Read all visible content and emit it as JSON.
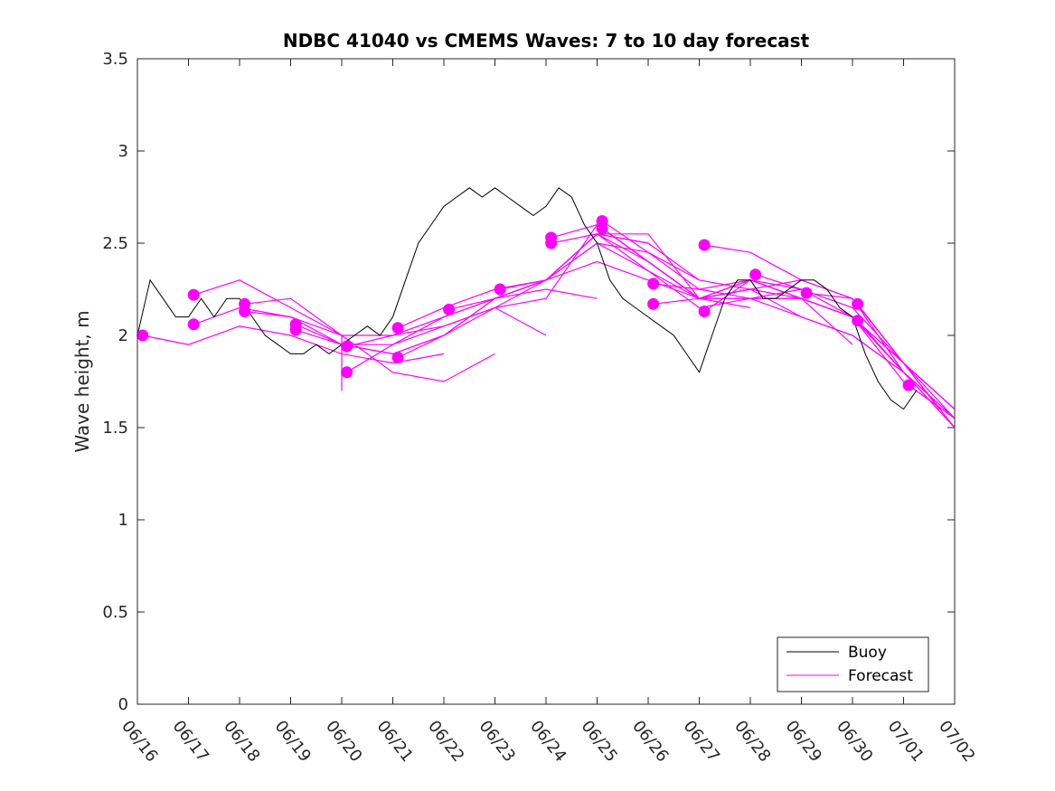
{
  "chart_data": {
    "type": "line",
    "title": "NDBC 41040 vs CMEMS Waves: 7 to 10 day forecast",
    "xlabel": "",
    "ylabel": "Wave height, m",
    "x_tick_labels": [
      "06/16",
      "06/17",
      "06/18",
      "06/19",
      "06/20",
      "06/21",
      "06/22",
      "06/23",
      "06/24",
      "06/25",
      "06/26",
      "06/27",
      "06/28",
      "06/29",
      "06/30",
      "07/01",
      "07/02"
    ],
    "xlim_days": [
      0,
      16
    ],
    "ylim": [
      0,
      3.5
    ],
    "y_ticks": [
      "0",
      "0.5",
      "1",
      "1.5",
      "2",
      "2.5",
      "3",
      "3.5"
    ],
    "grid": false,
    "legend_position": "bottom-right",
    "colors": {
      "buoy": "#000000",
      "forecast": "#ff00ff"
    },
    "buoy": {
      "name": "Buoy",
      "x_days": [
        0,
        0.25,
        0.5,
        0.75,
        1,
        1.25,
        1.5,
        1.75,
        2,
        2.25,
        2.5,
        2.75,
        3,
        3.25,
        3.5,
        3.75,
        4,
        4.25,
        4.5,
        4.75,
        5,
        5.25,
        5.5,
        5.75,
        6,
        6.25,
        6.5,
        6.75,
        7,
        7.25,
        7.5,
        7.75,
        8,
        8.25,
        8.5,
        8.75,
        9,
        9.25,
        9.5,
        9.75,
        10,
        10.25,
        10.5,
        10.75,
        11,
        11.25,
        11.5,
        11.75,
        12,
        12.25,
        12.5,
        12.75,
        13,
        13.25,
        13.5,
        13.75,
        14,
        14.25,
        14.5,
        14.75,
        15,
        15.25
      ],
      "values": [
        2.0,
        2.3,
        2.2,
        2.1,
        2.1,
        2.2,
        2.1,
        2.2,
        2.2,
        2.1,
        2.0,
        1.95,
        1.9,
        1.9,
        1.95,
        1.9,
        1.95,
        2.0,
        2.05,
        2.0,
        2.1,
        2.3,
        2.5,
        2.6,
        2.7,
        2.75,
        2.8,
        2.75,
        2.8,
        2.75,
        2.7,
        2.65,
        2.7,
        2.8,
        2.75,
        2.6,
        2.5,
        2.3,
        2.2,
        2.15,
        2.1,
        2.05,
        2.0,
        1.9,
        1.8,
        2.0,
        2.2,
        2.3,
        2.3,
        2.2,
        2.2,
        2.25,
        2.3,
        2.3,
        2.25,
        2.15,
        2.1,
        1.9,
        1.75,
        1.65,
        1.6,
        1.7
      ]
    },
    "forecast": {
      "name": "Forecast",
      "series": [
        {
          "x_days": [
            0.1,
            1,
            2,
            3,
            4,
            5,
            6
          ],
          "values": [
            2.0,
            1.95,
            2.05,
            2.0,
            1.9,
            1.85,
            1.9
          ]
        },
        {
          "x_days": [
            1.1,
            2,
            3,
            4,
            4.0
          ],
          "values": [
            2.22,
            2.3,
            2.15,
            2.0,
            1.7
          ]
        },
        {
          "x_days": [
            1.1,
            2,
            3,
            4,
            5,
            6,
            7
          ],
          "values": [
            2.06,
            2.15,
            2.1,
            2.0,
            1.8,
            1.75,
            1.9
          ]
        },
        {
          "x_days": [
            2.1,
            3,
            4,
            5,
            6,
            7,
            8
          ],
          "values": [
            2.17,
            2.2,
            2.0,
            2.0,
            2.05,
            2.15,
            2.0
          ]
        },
        {
          "x_days": [
            2.1,
            3,
            4,
            5,
            6,
            7,
            8,
            9
          ],
          "values": [
            2.13,
            2.1,
            1.95,
            1.9,
            2.0,
            2.2,
            2.25,
            2.2
          ]
        },
        {
          "x_days": [
            3.1,
            4,
            5,
            6,
            7,
            8,
            9,
            10
          ],
          "values": [
            2.06,
            1.95,
            1.95,
            2.1,
            2.2,
            2.3,
            2.55,
            2.5
          ]
        },
        {
          "x_days": [
            3.1,
            4,
            5,
            6,
            7,
            8,
            9,
            10,
            11
          ],
          "values": [
            2.03,
            1.95,
            1.9,
            2.0,
            2.15,
            2.3,
            2.55,
            2.5,
            2.3
          ]
        },
        {
          "x_days": [
            4.1,
            5,
            6,
            7,
            8,
            9,
            10,
            11,
            12
          ],
          "values": [
            1.94,
            2.0,
            2.1,
            2.2,
            2.3,
            2.55,
            2.55,
            2.2,
            2.15
          ]
        },
        {
          "x_days": [
            4.1,
            5,
            6,
            7,
            8,
            9,
            10,
            11,
            12
          ],
          "values": [
            1.8,
            1.95,
            2.05,
            2.15,
            2.2,
            2.6,
            2.4,
            2.2,
            2.25
          ]
        },
        {
          "x_days": [
            5.1,
            6,
            7,
            8,
            9,
            10,
            11,
            12,
            13
          ],
          "values": [
            2.04,
            2.15,
            2.25,
            2.3,
            2.5,
            2.45,
            2.25,
            2.2,
            2.25
          ]
        },
        {
          "x_days": [
            5.1,
            6,
            7,
            8,
            9,
            10,
            11,
            12,
            13,
            14
          ],
          "values": [
            1.88,
            2.0,
            2.2,
            2.3,
            2.4,
            2.3,
            2.2,
            2.2,
            2.2,
            1.95
          ]
        },
        {
          "x_days": [
            6.1,
            7,
            8,
            9,
            10,
            11,
            12,
            13,
            14,
            15
          ],
          "values": [
            2.14,
            2.2,
            2.3,
            2.5,
            2.35,
            2.2,
            2.25,
            2.1,
            2.0,
            1.8
          ]
        },
        {
          "x_days": [
            7.1,
            8,
            9,
            10,
            11,
            12,
            13,
            14,
            15,
            15.7
          ],
          "values": [
            2.25,
            2.3,
            2.55,
            2.4,
            2.2,
            2.3,
            2.2,
            2.1,
            1.85,
            1.6
          ]
        },
        {
          "x_days": [
            8.1,
            9,
            10,
            11,
            12,
            13,
            14,
            15,
            16
          ],
          "values": [
            2.53,
            2.6,
            2.4,
            2.2,
            2.3,
            2.2,
            2.1,
            1.85,
            1.55
          ]
        },
        {
          "x_days": [
            8.1,
            9,
            10,
            11,
            12,
            13,
            14,
            15,
            16
          ],
          "values": [
            2.5,
            2.55,
            2.35,
            2.15,
            2.2,
            2.1,
            2.0,
            1.8,
            1.5
          ]
        },
        {
          "x_days": [
            9.1,
            10,
            11,
            12,
            13,
            14,
            15,
            16
          ],
          "values": [
            2.62,
            2.45,
            2.3,
            2.25,
            2.3,
            2.2,
            1.85,
            1.6
          ]
        },
        {
          "x_days": [
            9.1,
            10,
            11,
            12,
            13,
            14,
            15,
            16
          ],
          "values": [
            2.58,
            2.4,
            2.2,
            2.2,
            2.2,
            2.1,
            1.8,
            1.55
          ]
        },
        {
          "x_days": [
            10.1,
            11,
            12,
            13,
            14,
            15,
            16
          ],
          "values": [
            2.28,
            2.25,
            2.3,
            2.2,
            2.1,
            1.85,
            1.5
          ]
        },
        {
          "x_days": [
            10.1,
            11,
            12,
            13,
            14,
            15,
            16
          ],
          "values": [
            2.17,
            2.2,
            2.25,
            2.2,
            2.1,
            1.8,
            1.55
          ]
        },
        {
          "x_days": [
            11.1,
            12,
            13,
            14,
            15,
            16
          ],
          "values": [
            2.49,
            2.45,
            2.3,
            2.2,
            1.8,
            1.5
          ]
        },
        {
          "x_days": [
            11.1,
            12,
            13,
            14,
            15,
            16
          ],
          "values": [
            2.13,
            2.3,
            2.25,
            2.1,
            1.75,
            1.55
          ]
        },
        {
          "x_days": [
            12.1,
            13,
            14,
            15,
            16
          ],
          "values": [
            2.33,
            2.25,
            2.15,
            1.85,
            1.6
          ]
        },
        {
          "x_days": [
            13.1,
            14,
            15,
            16
          ],
          "values": [
            2.23,
            2.2,
            1.8,
            1.55
          ]
        },
        {
          "x_days": [
            14.1,
            15,
            16
          ],
          "values": [
            2.17,
            1.85,
            1.6
          ]
        },
        {
          "x_days": [
            14.1,
            15,
            16
          ],
          "values": [
            2.08,
            1.8,
            1.5
          ]
        },
        {
          "x_days": [
            15.1,
            16
          ],
          "values": [
            1.73,
            1.55
          ]
        }
      ],
      "markers": [
        [
          0.1,
          2.0
        ],
        [
          1.1,
          2.22
        ],
        [
          1.1,
          2.06
        ],
        [
          2.1,
          2.17
        ],
        [
          2.1,
          2.13
        ],
        [
          3.1,
          2.06
        ],
        [
          3.1,
          2.03
        ],
        [
          4.1,
          1.94
        ],
        [
          4.1,
          1.8
        ],
        [
          5.1,
          2.04
        ],
        [
          5.1,
          1.88
        ],
        [
          6.1,
          2.14
        ],
        [
          7.1,
          2.25
        ],
        [
          8.1,
          2.53
        ],
        [
          8.1,
          2.5
        ],
        [
          9.1,
          2.62
        ],
        [
          9.1,
          2.58
        ],
        [
          10.1,
          2.28
        ],
        [
          10.1,
          2.17
        ],
        [
          11.1,
          2.49
        ],
        [
          11.1,
          2.13
        ],
        [
          12.1,
          2.33
        ],
        [
          13.1,
          2.23
        ],
        [
          14.1,
          2.17
        ],
        [
          14.1,
          2.08
        ],
        [
          15.1,
          1.73
        ]
      ]
    }
  },
  "legend": {
    "buoy_label": "Buoy",
    "forecast_label": "Forecast"
  }
}
